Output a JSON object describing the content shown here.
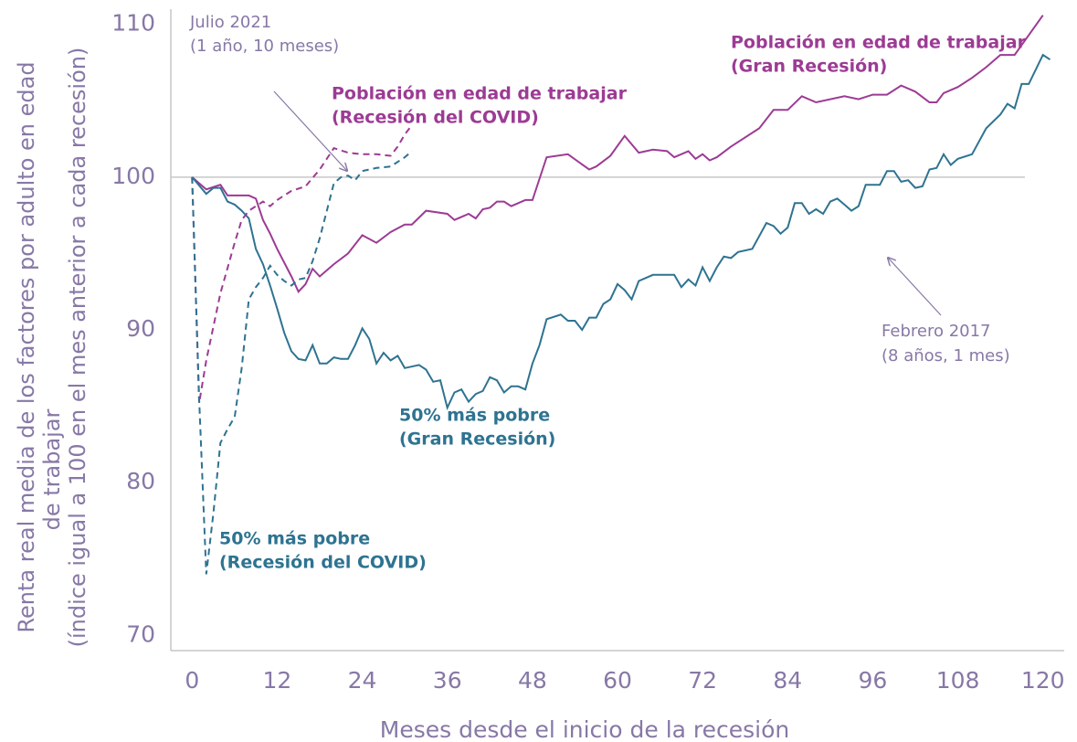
{
  "chart_data": {
    "type": "line",
    "xlabel": "Meses desde el inicio de la recesión",
    "ylabel": [
      "Renta real media de los factores por adulto en edad",
      "de trabajar",
      "(índice igual a 100 en el mes anterior a cada recesión)"
    ],
    "xlim": [
      -3,
      123
    ],
    "ylim": [
      69,
      111
    ],
    "xticks": [
      0,
      12,
      24,
      36,
      48,
      60,
      72,
      84,
      96,
      108,
      120
    ],
    "yticks": [
      70,
      80,
      90,
      100,
      110
    ],
    "hline": 100,
    "series": [
      {
        "label": [
          "Población en edad de trabajar",
          "(Gran Recesión)"
        ],
        "color": "#9c3b94",
        "dash": false,
        "x": [
          0,
          2,
          4,
          5,
          8,
          9,
          10,
          11,
          12,
          14,
          15,
          16,
          17,
          18,
          20,
          22,
          24,
          26,
          28,
          30,
          31,
          33,
          36,
          37,
          39,
          40,
          41,
          42,
          43,
          44,
          45,
          46,
          47,
          48,
          50,
          53,
          56,
          57,
          59,
          61,
          63,
          65,
          67,
          68,
          70,
          71,
          72,
          73,
          74,
          76,
          80,
          82,
          84,
          86,
          88,
          92,
          94,
          96,
          98,
          100,
          102,
          104,
          105,
          106,
          108,
          110,
          112,
          114,
          116,
          118,
          120
        ],
        "values": [
          100,
          99.2,
          99.5,
          98.8,
          98.8,
          98.6,
          97.2,
          96.3,
          95.3,
          93.5,
          92.5,
          93,
          94,
          93.5,
          94.3,
          95,
          96.2,
          95.7,
          96.4,
          96.9,
          96.9,
          97.8,
          97.6,
          97.2,
          97.6,
          97.3,
          97.9,
          98,
          98.4,
          98.4,
          98.1,
          98.3,
          98.5,
          98.5,
          101.3,
          101.5,
          100.5,
          100.7,
          101.4,
          102.7,
          101.6,
          101.8,
          101.7,
          101.3,
          101.7,
          101.2,
          101.5,
          101.1,
          101.3,
          102,
          103.2,
          104.4,
          104.4,
          105.3,
          104.9,
          105.3,
          105.1,
          105.4,
          105.4,
          106,
          105.6,
          104.9,
          104.9,
          105.5,
          105.9,
          106.5,
          107.2,
          108,
          108,
          109.3,
          110.6
        ]
      },
      {
        "label": [
          "50% más pobre",
          "(Gran Recesión)"
        ],
        "color": "#2e7391",
        "dash": false,
        "x": [
          0,
          2,
          3,
          4,
          5,
          6,
          7,
          8,
          9,
          10,
          11,
          12,
          13,
          14,
          15,
          16,
          17,
          18,
          19,
          20,
          21,
          22,
          23,
          24,
          25,
          26,
          27,
          28,
          29,
          30,
          32,
          33,
          34,
          35,
          36,
          37,
          38,
          39,
          40,
          41,
          42,
          43,
          44,
          45,
          46,
          47,
          48,
          49,
          50,
          52,
          53,
          54,
          55,
          56,
          57,
          58,
          59,
          60,
          61,
          62,
          63,
          65,
          68,
          69,
          70,
          71,
          72,
          73,
          74,
          75,
          76,
          77,
          79,
          81,
          82,
          83,
          84,
          85,
          86,
          87,
          88,
          89,
          90,
          91,
          92,
          93,
          94,
          95,
          97,
          98,
          99,
          100,
          101,
          102,
          103,
          104,
          105,
          106,
          107,
          108,
          110,
          112,
          114,
          115,
          116,
          117,
          118,
          120,
          121
        ],
        "values": [
          100,
          98.9,
          99.3,
          99.3,
          98.4,
          98.2,
          97.8,
          97.3,
          95.3,
          94.3,
          92.9,
          91.4,
          89.8,
          88.6,
          88.1,
          88,
          89,
          87.8,
          87.8,
          88.2,
          88.1,
          88.1,
          89,
          90.1,
          89.4,
          87.8,
          88.5,
          88,
          88.3,
          87.5,
          87.7,
          87.4,
          86.6,
          86.7,
          84.9,
          85.9,
          86.1,
          85.3,
          85.8,
          86,
          86.9,
          86.7,
          85.9,
          86.3,
          86.3,
          86.1,
          87.8,
          89,
          90.7,
          91,
          90.6,
          90.6,
          90,
          90.8,
          90.8,
          91.7,
          92,
          93,
          92.6,
          92,
          93.2,
          93.6,
          93.6,
          92.8,
          93.3,
          92.9,
          94.1,
          93.2,
          94.1,
          94.8,
          94.7,
          95.1,
          95.3,
          97,
          96.8,
          96.3,
          96.7,
          98.3,
          98.3,
          97.6,
          97.9,
          97.6,
          98.4,
          98.6,
          98.2,
          97.8,
          98.1,
          99.5,
          99.5,
          100.4,
          100.4,
          99.7,
          99.8,
          99.3,
          99.4,
          100.5,
          100.6,
          101.5,
          100.8,
          101.2,
          101.5,
          103.2,
          104.1,
          104.8,
          104.5,
          106.1,
          106.1,
          108,
          107.7
        ]
      },
      {
        "label": [
          "Población en edad de trabajar",
          "(Recesión del COVID)"
        ],
        "color": "#9c3b94",
        "dash": true,
        "x": [
          0,
          1,
          2,
          4,
          6,
          7,
          8,
          10,
          11,
          12,
          14,
          16,
          18,
          20,
          22,
          24,
          26,
          28,
          29,
          30,
          31
        ],
        "values": [
          100,
          85.2,
          88,
          92.4,
          95.7,
          97.2,
          97.8,
          98.4,
          98.1,
          98.5,
          99.1,
          99.4,
          100.5,
          101.9,
          101.6,
          101.5,
          101.5,
          101.4,
          102,
          102.8,
          103.4
        ]
      },
      {
        "label": [
          "50% más pobre",
          "(Recesión del COVID)"
        ],
        "color": "#2e7391",
        "dash": true,
        "x": [
          0,
          1,
          2,
          3,
          4,
          5,
          6,
          7,
          8,
          9,
          10,
          11,
          12,
          13,
          14,
          15,
          16,
          17,
          18,
          19,
          20,
          21,
          22,
          23,
          24,
          26,
          28,
          30,
          31
        ],
        "values": [
          100,
          85.5,
          74,
          78,
          82.6,
          83.5,
          84.3,
          87.5,
          92,
          92.8,
          93.4,
          94.2,
          93.6,
          93.2,
          92.9,
          93.3,
          93.4,
          94.5,
          96,
          97.8,
          99.6,
          100,
          100.1,
          99.8,
          100.4,
          100.6,
          100.7,
          101.3,
          101.7
        ]
      }
    ],
    "annotations": [
      {
        "lines": [
          "Julio 2021",
          "(1 año, 10 meses)"
        ]
      },
      {
        "lines": [
          "Febrero 2017",
          "(8 años, 1 mes)"
        ]
      }
    ]
  }
}
